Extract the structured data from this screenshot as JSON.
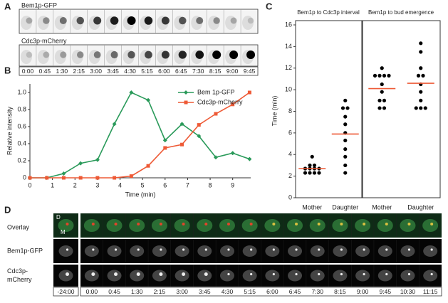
{
  "panel_a": {
    "label": "A",
    "rows": [
      "Bem1p-GFP",
      "Cdc3p-mCherry"
    ],
    "times": [
      "0:00",
      "0:45",
      "1:30",
      "2:15",
      "3:00",
      "3:45",
      "4:30",
      "5:15",
      "6:00",
      "6:45",
      "7:30",
      "8:15",
      "9:00",
      "9:45"
    ]
  },
  "chart_data": [
    {
      "type": "line",
      "label": "B",
      "xlabel": "Time (min)",
      "ylabel": "Relative intensity",
      "x": [
        0,
        0.75,
        1.5,
        2.25,
        3,
        3.75,
        4.5,
        5.25,
        6,
        6.75,
        7.5,
        8.25,
        9,
        9.75
      ],
      "series": [
        {
          "name": "Bem 1p-GFP",
          "color": "#2a9a5a",
          "marker": "diamond",
          "values": [
            0,
            0,
            0.05,
            0.17,
            0.21,
            0.63,
            1.0,
            0.91,
            0.44,
            0.63,
            0.49,
            0.24,
            0.29,
            0.22
          ]
        },
        {
          "name": "Cdc3p-mCherry",
          "color": "#ee5a36",
          "marker": "square",
          "values": [
            0,
            0,
            0,
            0,
            0,
            0,
            0.02,
            0.14,
            0.35,
            0.39,
            0.62,
            0.75,
            0.86,
            1.0
          ]
        }
      ],
      "xlim": [
        0,
        9.8
      ],
      "xticks": [
        0,
        1,
        2,
        3,
        4,
        5,
        6,
        7,
        8,
        9
      ],
      "ylim": [
        0,
        1.1
      ],
      "yticks": [
        0,
        0.2,
        0.4,
        0.6,
        0.8,
        {
          "value": 1,
          "label": "1.0"
        }
      ],
      "legend": "top-right"
    },
    {
      "type": "strip",
      "label": "C",
      "title": "Bem1p to Cdc3p interval",
      "ylabel": "Time (min)",
      "categories": [
        "Mother",
        "Daughter"
      ],
      "color": "#000000",
      "mean_color": "#ee5a36",
      "values": [
        [
          3.8,
          3.0,
          3.0,
          2.7,
          2.7,
          2.7,
          2.7,
          2.3,
          2.3,
          2.3,
          2.3
        ],
        [
          9.0,
          8.3,
          8.3,
          7.5,
          6.8,
          6.0,
          5.3,
          4.5,
          3.8,
          3.0,
          2.3
        ]
      ],
      "means": [
        2.7,
        5.9
      ],
      "ylim": [
        0,
        16
      ],
      "yticks": [
        0,
        2,
        4,
        6,
        8,
        10,
        12,
        14,
        16
      ]
    },
    {
      "type": "strip",
      "title": "Bem1p to bud emergence",
      "categories": [
        "Mother",
        "Daughter"
      ],
      "color": "#000000",
      "mean_color": "#ee5a36",
      "values": [
        [
          12.0,
          11.3,
          11.3,
          11.3,
          11.3,
          10.5,
          9.8,
          9.0,
          9.0,
          8.3,
          8.3
        ],
        [
          14.3,
          13.5,
          12.0,
          11.3,
          11.3,
          10.5,
          9.8,
          9.0,
          8.3,
          8.3,
          8.3
        ]
      ],
      "means": [
        10.1,
        10.6
      ],
      "ylim": [
        0,
        16
      ]
    }
  ],
  "panel_d": {
    "label": "D",
    "rows": [
      "Overlay",
      "Bem1p-GFP",
      "Cdc3p-\nmCherry"
    ],
    "cell_marks": [
      "D",
      "M"
    ],
    "pre_time": "-24:00",
    "times": [
      "0:00",
      "0:45",
      "1:30",
      "2:15",
      "3:00",
      "3:45",
      "4:30",
      "5:15",
      "6:00",
      "6:45",
      "7:30",
      "8:15",
      "9:00",
      "9:45",
      "10:30",
      "11:15"
    ]
  }
}
